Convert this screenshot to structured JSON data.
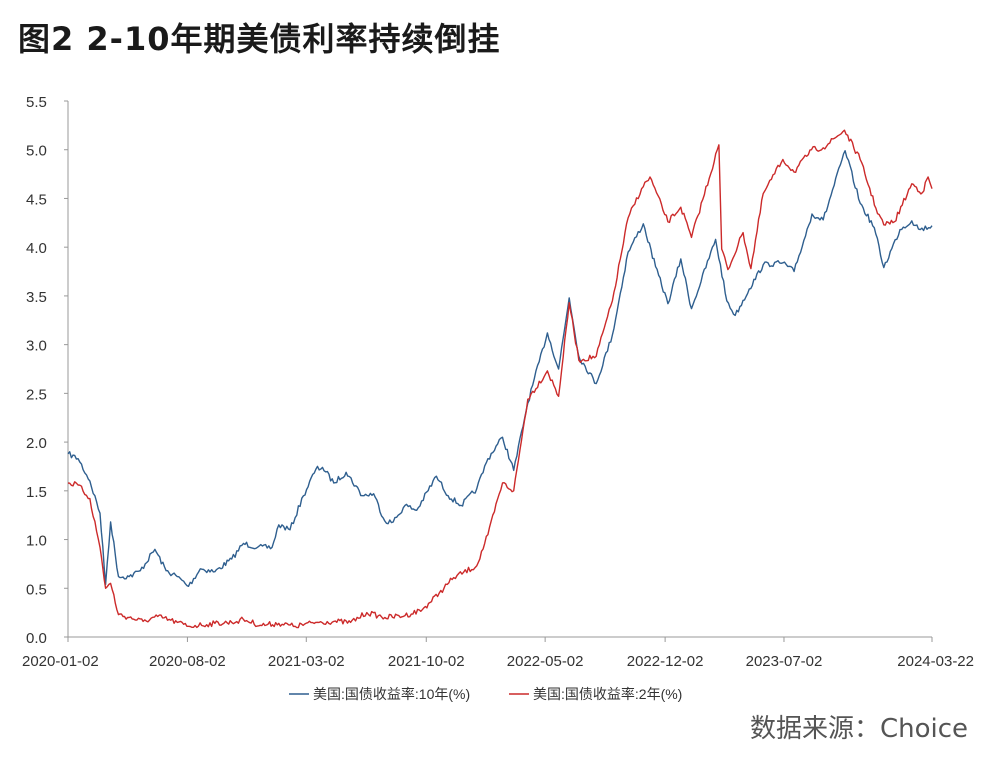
{
  "header": {
    "title": "图2  2-10年期美债利率持续倒挂"
  },
  "footer": {
    "source": "数据来源：Choice"
  },
  "chart_data": {
    "type": "line",
    "title": "图2  2-10年期美债利率持续倒挂",
    "xlabel": "",
    "ylabel": "",
    "ylim": [
      0.0,
      5.5
    ],
    "y_ticks": [
      "0.0",
      "0.5",
      "1.0",
      "1.5",
      "2.0",
      "2.5",
      "3.0",
      "3.5",
      "4.0",
      "4.5",
      "5.0",
      "5.5"
    ],
    "x_ticks": [
      "2020-01-02",
      "2020-08-02",
      "2021-03-02",
      "2021-10-02",
      "2022-05-02",
      "2022-12-02",
      "2023-07-02",
      "2024-03-22"
    ],
    "grid": false,
    "legend_position": "bottom",
    "series": [
      {
        "name": "美国:国债收益率:10年(%)",
        "color": "#2f5f8f",
        "points": [
          [
            "2020-01-02",
            1.88
          ],
          [
            "2020-01-20",
            1.83
          ],
          [
            "2020-02-10",
            1.6
          ],
          [
            "2020-02-28",
            1.27
          ],
          [
            "2020-03-09",
            0.54
          ],
          [
            "2020-03-18",
            1.18
          ],
          [
            "2020-04-01",
            0.62
          ],
          [
            "2020-04-20",
            0.62
          ],
          [
            "2020-05-10",
            0.68
          ],
          [
            "2020-06-05",
            0.9
          ],
          [
            "2020-06-25",
            0.68
          ],
          [
            "2020-07-15",
            0.62
          ],
          [
            "2020-08-04",
            0.52
          ],
          [
            "2020-08-25",
            0.7
          ],
          [
            "2020-09-20",
            0.67
          ],
          [
            "2020-10-20",
            0.8
          ],
          [
            "2020-11-10",
            0.96
          ],
          [
            "2020-12-05",
            0.92
          ],
          [
            "2020-12-31",
            0.92
          ],
          [
            "2021-01-12",
            1.15
          ],
          [
            "2021-02-01",
            1.1
          ],
          [
            "2021-02-25",
            1.45
          ],
          [
            "2021-03-19",
            1.72
          ],
          [
            "2021-03-31",
            1.74
          ],
          [
            "2021-04-20",
            1.58
          ],
          [
            "2021-05-12",
            1.69
          ],
          [
            "2021-06-10",
            1.45
          ],
          [
            "2021-06-30",
            1.47
          ],
          [
            "2021-07-20",
            1.19
          ],
          [
            "2021-08-04",
            1.18
          ],
          [
            "2021-08-25",
            1.35
          ],
          [
            "2021-09-15",
            1.3
          ],
          [
            "2021-10-20",
            1.65
          ],
          [
            "2021-11-10",
            1.45
          ],
          [
            "2021-12-03",
            1.35
          ],
          [
            "2021-12-31",
            1.52
          ],
          [
            "2022-01-20",
            1.83
          ],
          [
            "2022-02-15",
            2.05
          ],
          [
            "2022-03-07",
            1.71
          ],
          [
            "2022-04-01",
            2.4
          ],
          [
            "2022-05-06",
            3.12
          ],
          [
            "2022-05-26",
            2.75
          ],
          [
            "2022-06-14",
            3.48
          ],
          [
            "2022-07-01",
            2.88
          ],
          [
            "2022-08-01",
            2.6
          ],
          [
            "2022-08-30",
            3.1
          ],
          [
            "2022-09-27",
            3.95
          ],
          [
            "2022-10-24",
            4.24
          ],
          [
            "2022-11-15",
            3.8
          ],
          [
            "2022-12-07",
            3.42
          ],
          [
            "2022-12-30",
            3.88
          ],
          [
            "2023-01-18",
            3.37
          ],
          [
            "2023-03-02",
            4.08
          ],
          [
            "2023-03-22",
            3.45
          ],
          [
            "2023-04-06",
            3.3
          ],
          [
            "2023-05-01",
            3.57
          ],
          [
            "2023-05-26",
            3.82
          ],
          [
            "2023-06-30",
            3.84
          ],
          [
            "2023-07-20",
            3.75
          ],
          [
            "2023-08-21",
            4.34
          ],
          [
            "2023-09-10",
            4.28
          ],
          [
            "2023-10-19",
            4.99
          ],
          [
            "2023-11-15",
            4.45
          ],
          [
            "2023-12-10",
            4.2
          ],
          [
            "2023-12-27",
            3.79
          ],
          [
            "2024-01-25",
            4.18
          ],
          [
            "2024-02-15",
            4.27
          ],
          [
            "2024-03-01",
            4.18
          ],
          [
            "2024-03-22",
            4.22
          ]
        ]
      },
      {
        "name": "美国:国债收益率:2年(%)",
        "color": "#cc2a2a",
        "points": [
          [
            "2020-01-02",
            1.58
          ],
          [
            "2020-01-20",
            1.56
          ],
          [
            "2020-02-10",
            1.42
          ],
          [
            "2020-02-28",
            0.92
          ],
          [
            "2020-03-09",
            0.5
          ],
          [
            "2020-03-18",
            0.55
          ],
          [
            "2020-04-01",
            0.23
          ],
          [
            "2020-04-20",
            0.2
          ],
          [
            "2020-05-15",
            0.16
          ],
          [
            "2020-06-10",
            0.21
          ],
          [
            "2020-07-15",
            0.15
          ],
          [
            "2020-08-04",
            0.11
          ],
          [
            "2020-09-20",
            0.14
          ],
          [
            "2020-10-20",
            0.15
          ],
          [
            "2020-11-10",
            0.18
          ],
          [
            "2020-12-10",
            0.12
          ],
          [
            "2021-01-12",
            0.14
          ],
          [
            "2021-02-10",
            0.11
          ],
          [
            "2021-03-19",
            0.15
          ],
          [
            "2021-04-20",
            0.16
          ],
          [
            "2021-05-20",
            0.15
          ],
          [
            "2021-06-18",
            0.25
          ],
          [
            "2021-07-20",
            0.2
          ],
          [
            "2021-08-25",
            0.22
          ],
          [
            "2021-09-25",
            0.28
          ],
          [
            "2021-10-25",
            0.45
          ],
          [
            "2021-11-20",
            0.61
          ],
          [
            "2021-12-31",
            0.73
          ],
          [
            "2022-01-20",
            1.05
          ],
          [
            "2022-02-15",
            1.58
          ],
          [
            "2022-03-07",
            1.5
          ],
          [
            "2022-04-01",
            2.44
          ],
          [
            "2022-05-06",
            2.73
          ],
          [
            "2022-05-26",
            2.47
          ],
          [
            "2022-06-14",
            3.43
          ],
          [
            "2022-07-01",
            2.84
          ],
          [
            "2022-08-01",
            2.88
          ],
          [
            "2022-08-30",
            3.45
          ],
          [
            "2022-09-27",
            4.3
          ],
          [
            "2022-10-21",
            4.6
          ],
          [
            "2022-11-05",
            4.72
          ],
          [
            "2022-12-07",
            4.26
          ],
          [
            "2022-12-30",
            4.41
          ],
          [
            "2023-01-18",
            4.1
          ],
          [
            "2023-03-08",
            5.05
          ],
          [
            "2023-03-13",
            3.98
          ],
          [
            "2023-03-24",
            3.77
          ],
          [
            "2023-04-20",
            4.15
          ],
          [
            "2023-05-04",
            3.78
          ],
          [
            "2023-05-26",
            4.55
          ],
          [
            "2023-06-30",
            4.9
          ],
          [
            "2023-07-20",
            4.77
          ],
          [
            "2023-08-20",
            5.0
          ],
          [
            "2023-09-10",
            5.02
          ],
          [
            "2023-10-18",
            5.2
          ],
          [
            "2023-11-15",
            4.9
          ],
          [
            "2023-12-13",
            4.4
          ],
          [
            "2023-12-27",
            4.23
          ],
          [
            "2024-01-15",
            4.26
          ],
          [
            "2024-02-15",
            4.65
          ],
          [
            "2024-03-05",
            4.56
          ],
          [
            "2024-03-15",
            4.72
          ],
          [
            "2024-03-22",
            4.6
          ]
        ]
      }
    ]
  }
}
